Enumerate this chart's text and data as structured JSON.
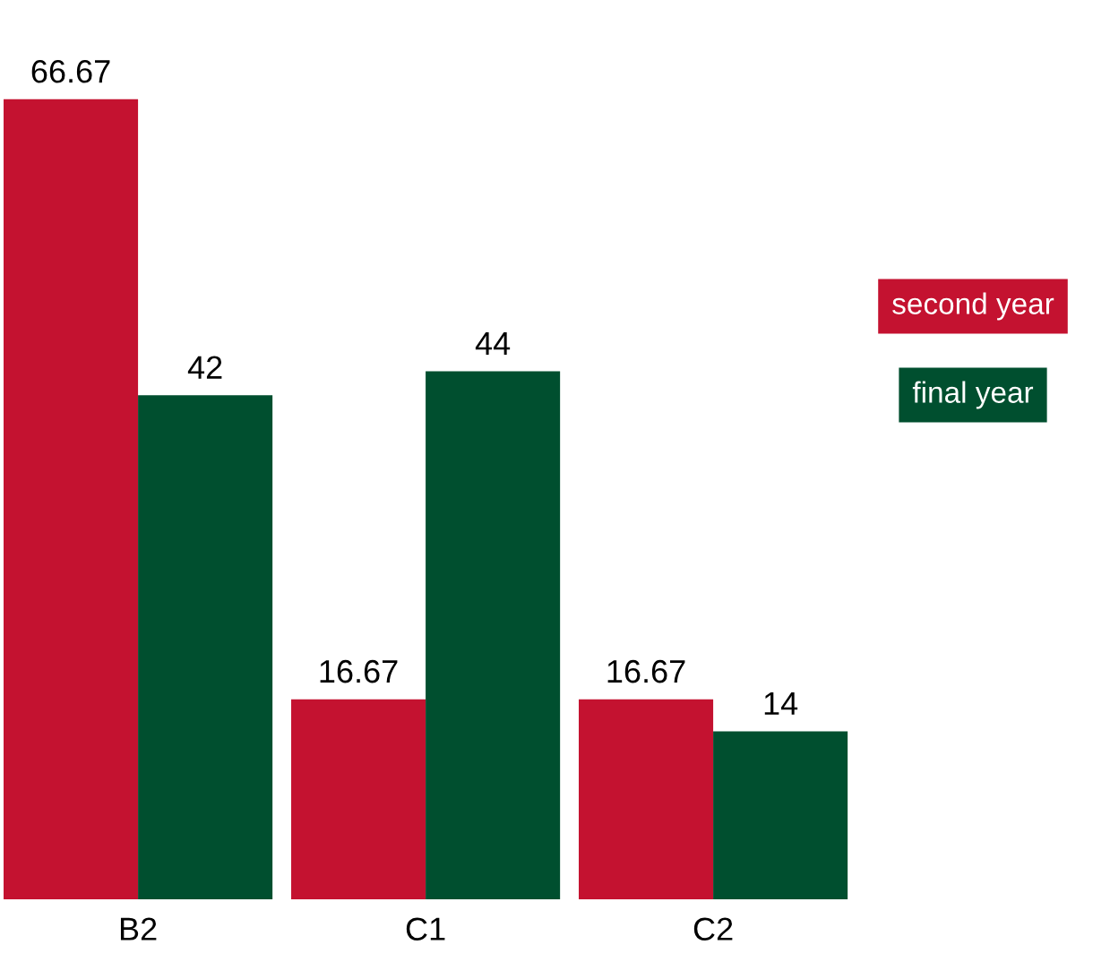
{
  "chart_data": {
    "type": "bar",
    "categories": [
      "B2",
      "C1",
      "C2"
    ],
    "series": [
      {
        "name": "second year",
        "color": "#c41230",
        "values": [
          66.67,
          16.67,
          16.67
        ]
      },
      {
        "name": "final year",
        "color": "#004f2f",
        "values": [
          42,
          44,
          14
        ]
      }
    ],
    "data_labels": true,
    "legend": "right",
    "grid": false
  }
}
